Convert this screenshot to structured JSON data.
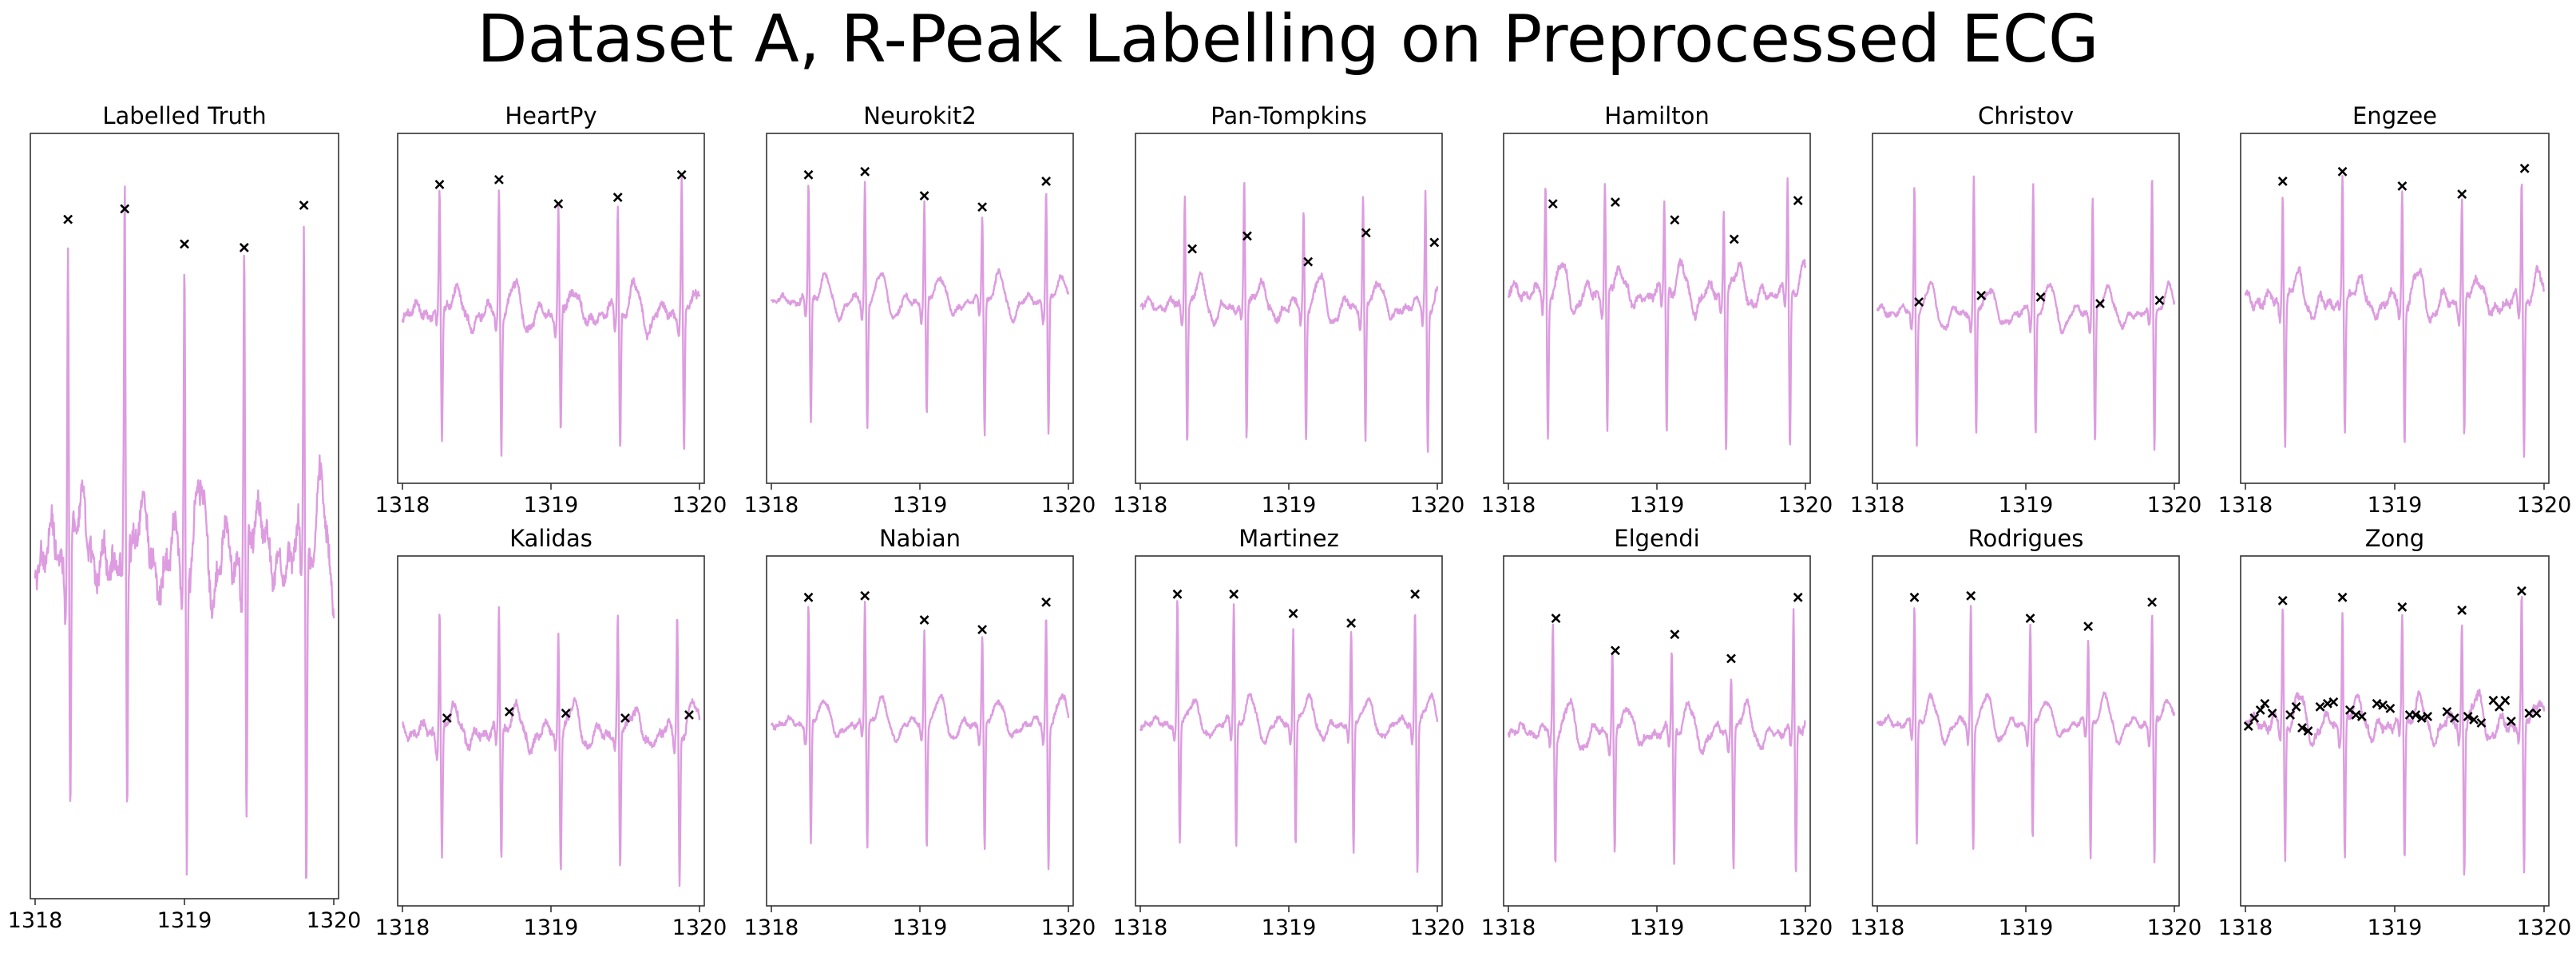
{
  "title": "Dataset A, R-Peak Labelling on Preprocessed ECG",
  "colors": {
    "signal": "#dd9ce0",
    "marker": "#000000",
    "axes": "#333333"
  },
  "chart_data": [
    {
      "type": "line",
      "title": "Labelled Truth",
      "xlim": [
        1318,
        1320
      ],
      "ylim": [
        -1,
        1
      ],
      "xticks": [
        1318,
        1319,
        1320
      ],
      "baseline": -0.1,
      "noise": 0.08,
      "beats": [
        1318.22,
        1318.6,
        1319.0,
        1319.4,
        1319.8
      ],
      "r_heights": [
        0.82,
        0.85,
        0.75,
        0.74,
        0.86
      ],
      "s_depths": [
        -0.88,
        -0.87,
        -0.98,
        -0.93,
        -1.05
      ],
      "peaks": [
        [
          1318.22,
          0.82
        ],
        [
          1318.6,
          0.85
        ],
        [
          1319.0,
          0.75
        ],
        [
          1319.4,
          0.74
        ],
        [
          1319.8,
          0.86
        ]
      ]
    },
    {
      "type": "line",
      "title": "HeartPy",
      "xlim": [
        1318,
        1320
      ],
      "ylim": [
        -1,
        1
      ],
      "xticks": [
        1318,
        1319,
        1320
      ],
      "baseline": -0.02,
      "noise": 0.05,
      "beats": [
        1318.25,
        1318.65,
        1319.05,
        1319.45,
        1319.88
      ],
      "r_heights": [
        0.72,
        0.75,
        0.6,
        0.64,
        0.78
      ],
      "s_depths": [
        -0.84,
        -0.86,
        -0.82,
        -0.88,
        -0.95
      ],
      "peaks": [
        [
          1318.25,
          0.72
        ],
        [
          1318.65,
          0.75
        ],
        [
          1319.05,
          0.6
        ],
        [
          1319.45,
          0.64
        ],
        [
          1319.88,
          0.78
        ]
      ]
    },
    {
      "type": "line",
      "title": "Neurokit2",
      "xlim": [
        1318,
        1320
      ],
      "ylim": [
        -1,
        1
      ],
      "xticks": [
        1318,
        1319,
        1320
      ],
      "baseline": 0.05,
      "noise": 0.03,
      "beats": [
        1318.25,
        1318.63,
        1319.03,
        1319.42,
        1319.85
      ],
      "r_heights": [
        0.78,
        0.8,
        0.65,
        0.58,
        0.74
      ],
      "s_depths": [
        -0.72,
        -0.72,
        -0.7,
        -0.78,
        -0.82
      ],
      "peaks": [
        [
          1318.25,
          0.78
        ],
        [
          1318.63,
          0.8
        ],
        [
          1319.03,
          0.65
        ],
        [
          1319.42,
          0.58
        ],
        [
          1319.85,
          0.74
        ]
      ]
    },
    {
      "type": "line",
      "title": "Pan-Tompkins",
      "xlim": [
        1318,
        1320
      ],
      "ylim": [
        -1,
        1
      ],
      "xticks": [
        1318,
        1319,
        1320
      ],
      "baseline": 0.02,
      "noise": 0.04,
      "beats": [
        1318.3,
        1318.7,
        1319.1,
        1319.5,
        1319.92
      ],
      "r_heights": [
        0.74,
        0.78,
        0.6,
        0.7,
        0.72
      ],
      "s_depths": [
        -0.82,
        -0.82,
        -0.8,
        -0.85,
        -0.9
      ],
      "peaks": [
        [
          1318.35,
          0.32
        ],
        [
          1318.72,
          0.4
        ],
        [
          1319.13,
          0.24
        ],
        [
          1319.52,
          0.42
        ],
        [
          1319.98,
          0.36
        ]
      ]
    },
    {
      "type": "line",
      "title": "Hamilton",
      "xlim": [
        1318,
        1320
      ],
      "ylim": [
        -1,
        1
      ],
      "xticks": [
        1318,
        1319,
        1320
      ],
      "baseline": 0.1,
      "noise": 0.05,
      "beats": [
        1318.25,
        1318.65,
        1319.05,
        1319.45,
        1319.88
      ],
      "r_heights": [
        0.78,
        0.8,
        0.68,
        0.66,
        0.82
      ],
      "s_depths": [
        -0.82,
        -0.8,
        -0.78,
        -0.85,
        -0.88
      ],
      "peaks": [
        [
          1318.3,
          0.6
        ],
        [
          1318.72,
          0.61
        ],
        [
          1319.12,
          0.5
        ],
        [
          1319.52,
          0.38
        ],
        [
          1319.95,
          0.62
        ]
      ]
    },
    {
      "type": "line",
      "title": "Christov",
      "xlim": [
        1318,
        1320
      ],
      "ylim": [
        -1,
        1
      ],
      "xticks": [
        1318,
        1319,
        1320
      ],
      "baseline": -0.02,
      "noise": 0.03,
      "beats": [
        1318.25,
        1318.65,
        1319.05,
        1319.45,
        1319.85
      ],
      "r_heights": [
        0.8,
        0.8,
        0.78,
        0.72,
        0.82
      ],
      "s_depths": [
        -0.82,
        -0.82,
        -0.8,
        -0.85,
        -0.88
      ],
      "peaks": [
        [
          1318.28,
          -0.01
        ],
        [
          1318.7,
          0.03
        ],
        [
          1319.1,
          0.02
        ],
        [
          1319.5,
          -0.02
        ],
        [
          1319.9,
          0.0
        ]
      ]
    },
    {
      "type": "line",
      "title": "Engzee",
      "xlim": [
        1318,
        1320
      ],
      "ylim": [
        -1,
        1
      ],
      "xticks": [
        1318,
        1319,
        1320
      ],
      "baseline": 0.05,
      "noise": 0.05,
      "beats": [
        1318.25,
        1318.65,
        1319.05,
        1319.45,
        1319.85
      ],
      "r_heights": [
        0.76,
        0.8,
        0.74,
        0.68,
        0.82
      ],
      "s_depths": [
        -0.82,
        -0.8,
        -0.82,
        -0.85,
        -0.92
      ],
      "peaks": [
        [
          1318.25,
          0.74
        ],
        [
          1318.65,
          0.8
        ],
        [
          1319.05,
          0.71
        ],
        [
          1319.45,
          0.66
        ],
        [
          1319.87,
          0.82
        ]
      ]
    },
    {
      "type": "line",
      "title": "Kalidas",
      "xlim": [
        1318,
        1320
      ],
      "ylim": [
        -1,
        1
      ],
      "xticks": [
        1318,
        1319,
        1320
      ],
      "baseline": 0.0,
      "noise": 0.05,
      "beats": [
        1318.25,
        1318.65,
        1319.05,
        1319.45,
        1319.85
      ],
      "r_heights": [
        0.78,
        0.76,
        0.65,
        0.66,
        0.74
      ],
      "s_depths": [
        -0.8,
        -0.82,
        -0.82,
        -0.88,
        -0.95
      ],
      "peaks": [
        [
          1318.3,
          0.03
        ],
        [
          1318.72,
          0.07
        ],
        [
          1319.1,
          0.06
        ],
        [
          1319.5,
          0.03
        ],
        [
          1319.93,
          0.05
        ]
      ]
    },
    {
      "type": "line",
      "title": "Nabian",
      "xlim": [
        1318,
        1320
      ],
      "ylim": [
        -1,
        1
      ],
      "xticks": [
        1318,
        1319,
        1320
      ],
      "baseline": 0.05,
      "noise": 0.03,
      "beats": [
        1318.25,
        1318.63,
        1319.03,
        1319.42,
        1319.85
      ],
      "r_heights": [
        0.78,
        0.8,
        0.65,
        0.58,
        0.74
      ],
      "s_depths": [
        -0.72,
        -0.72,
        -0.7,
        -0.78,
        -0.85
      ],
      "peaks": [
        [
          1318.25,
          0.78
        ],
        [
          1318.63,
          0.79
        ],
        [
          1319.03,
          0.64
        ],
        [
          1319.42,
          0.58
        ],
        [
          1319.85,
          0.75
        ]
      ]
    },
    {
      "type": "line",
      "title": "Martinez",
      "xlim": [
        1318,
        1320
      ],
      "ylim": [
        -1,
        1
      ],
      "xticks": [
        1318,
        1319,
        1320
      ],
      "baseline": 0.05,
      "noise": 0.03,
      "beats": [
        1318.25,
        1318.63,
        1319.03,
        1319.42,
        1319.85
      ],
      "r_heights": [
        0.8,
        0.8,
        0.66,
        0.6,
        0.78
      ],
      "s_depths": [
        -0.72,
        -0.72,
        -0.7,
        -0.78,
        -0.86
      ],
      "peaks": [
        [
          1318.25,
          0.8
        ],
        [
          1318.63,
          0.8
        ],
        [
          1319.03,
          0.68
        ],
        [
          1319.42,
          0.62
        ],
        [
          1319.85,
          0.8
        ]
      ]
    },
    {
      "type": "line",
      "title": "Elgendi",
      "xlim": [
        1318,
        1320
      ],
      "ylim": [
        -1,
        1
      ],
      "xticks": [
        1318,
        1319,
        1320
      ],
      "baseline": 0.0,
      "noise": 0.04,
      "beats": [
        1318.3,
        1318.7,
        1319.1,
        1319.5,
        1319.92
      ],
      "r_heights": [
        0.65,
        0.5,
        0.5,
        0.38,
        0.75
      ],
      "s_depths": [
        -0.82,
        -0.8,
        -0.84,
        -0.84,
        -0.9
      ],
      "peaks": [
        [
          1318.32,
          0.65
        ],
        [
          1318.72,
          0.45
        ],
        [
          1319.12,
          0.55
        ],
        [
          1319.5,
          0.4
        ],
        [
          1319.95,
          0.78
        ]
      ]
    },
    {
      "type": "line",
      "title": "Rodrigues",
      "xlim": [
        1318,
        1320
      ],
      "ylim": [
        -1,
        1
      ],
      "xticks": [
        1318,
        1319,
        1320
      ],
      "baseline": 0.05,
      "noise": 0.03,
      "beats": [
        1318.25,
        1318.63,
        1319.03,
        1319.42,
        1319.85
      ],
      "r_heights": [
        0.78,
        0.8,
        0.65,
        0.58,
        0.74
      ],
      "s_depths": [
        -0.72,
        -0.72,
        -0.7,
        -0.78,
        -0.85
      ],
      "peaks": [
        [
          1318.25,
          0.78
        ],
        [
          1318.63,
          0.79
        ],
        [
          1319.03,
          0.65
        ],
        [
          1319.42,
          0.6
        ],
        [
          1319.85,
          0.75
        ]
      ]
    },
    {
      "type": "line",
      "title": "Zong",
      "xlim": [
        1318,
        1320
      ],
      "ylim": [
        -1,
        1
      ],
      "xticks": [
        1318,
        1319,
        1320
      ],
      "baseline": 0.05,
      "noise": 0.05,
      "beats": [
        1318.25,
        1318.65,
        1319.05,
        1319.45,
        1319.85
      ],
      "r_heights": [
        0.76,
        0.78,
        0.72,
        0.7,
        0.82
      ],
      "s_depths": [
        -0.8,
        -0.8,
        -0.8,
        -0.85,
        -0.92
      ],
      "peaks": [
        [
          1318.02,
          -0.02
        ],
        [
          1318.06,
          0.03
        ],
        [
          1318.1,
          0.08
        ],
        [
          1318.13,
          0.12
        ],
        [
          1318.18,
          0.06
        ],
        [
          1318.25,
          0.76
        ],
        [
          1318.3,
          0.05
        ],
        [
          1318.34,
          0.1
        ],
        [
          1318.38,
          -0.03
        ],
        [
          1318.42,
          -0.05
        ],
        [
          1318.5,
          0.1
        ],
        [
          1318.55,
          0.12
        ],
        [
          1318.59,
          0.13
        ],
        [
          1318.65,
          0.78
        ],
        [
          1318.7,
          0.08
        ],
        [
          1318.74,
          0.05
        ],
        [
          1318.78,
          0.04
        ],
        [
          1318.88,
          0.12
        ],
        [
          1318.92,
          0.11
        ],
        [
          1318.97,
          0.09
        ],
        [
          1319.05,
          0.72
        ],
        [
          1319.1,
          0.05
        ],
        [
          1319.14,
          0.05
        ],
        [
          1319.18,
          0.03
        ],
        [
          1319.22,
          0.04
        ],
        [
          1319.35,
          0.07
        ],
        [
          1319.4,
          0.03
        ],
        [
          1319.45,
          0.7
        ],
        [
          1319.49,
          0.04
        ],
        [
          1319.53,
          0.02
        ],
        [
          1319.58,
          0.0
        ],
        [
          1319.66,
          0.14
        ],
        [
          1319.7,
          0.1
        ],
        [
          1319.74,
          0.14
        ],
        [
          1319.78,
          0.01
        ],
        [
          1319.85,
          0.82
        ],
        [
          1319.9,
          0.06
        ],
        [
          1319.95,
          0.06
        ]
      ]
    }
  ]
}
